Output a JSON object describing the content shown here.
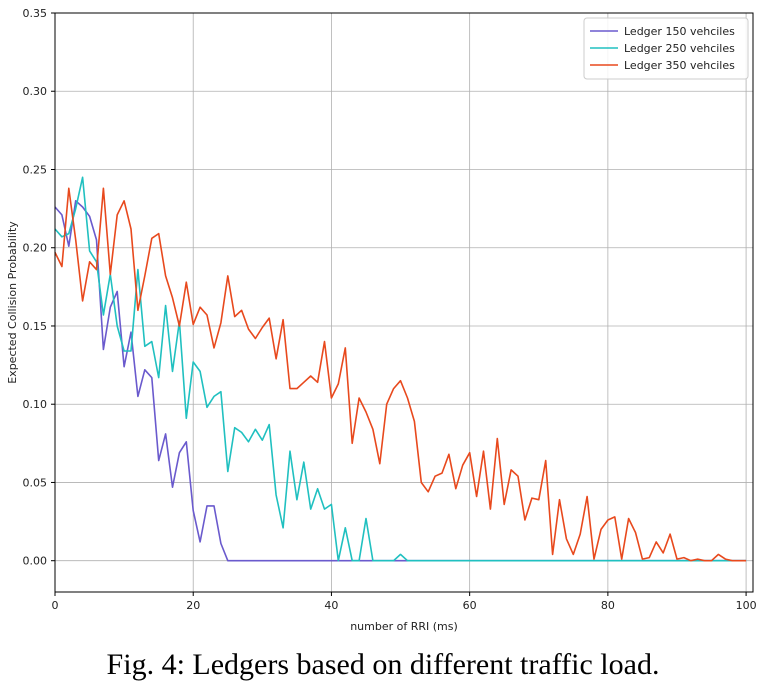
{
  "chart_data": {
    "type": "line",
    "title": "",
    "xlabel": "number of RRI (ms)",
    "ylabel": "Expected Collision Probability",
    "xlim": [
      0,
      101
    ],
    "ylim": [
      -0.02,
      0.35
    ],
    "xticks": [
      0,
      20,
      40,
      60,
      80,
      100
    ],
    "yticks": [
      0.0,
      0.05,
      0.1,
      0.15,
      0.2,
      0.25,
      0.3,
      0.35
    ],
    "grid": true,
    "legend_position": "top-right",
    "series": [
      {
        "name": "Ledger 150 vehciles",
        "color": "#6a5acd",
        "x": [
          0,
          1,
          2,
          3,
          4,
          5,
          6,
          7,
          8,
          9,
          10,
          11,
          12,
          13,
          14,
          15,
          16,
          17,
          18,
          19,
          20,
          21,
          22,
          23,
          24,
          25,
          30,
          40,
          50,
          60,
          70,
          80,
          90,
          100
        ],
        "y": [
          0.226,
          0.221,
          0.201,
          0.23,
          0.226,
          0.22,
          0.205,
          0.135,
          0.162,
          0.172,
          0.124,
          0.146,
          0.105,
          0.122,
          0.117,
          0.064,
          0.081,
          0.047,
          0.069,
          0.076,
          0.032,
          0.012,
          0.035,
          0.035,
          0.011,
          0.0,
          0.0,
          0.0,
          0.0,
          0.0,
          0.0,
          0.0,
          0.0,
          0.0
        ]
      },
      {
        "name": "Ledger 250 vehciles",
        "color": "#20c0c0",
        "x": [
          0,
          1,
          2,
          3,
          4,
          5,
          6,
          7,
          8,
          9,
          10,
          11,
          12,
          13,
          14,
          15,
          16,
          17,
          18,
          19,
          20,
          21,
          22,
          23,
          24,
          25,
          26,
          27,
          28,
          29,
          30,
          31,
          32,
          33,
          34,
          35,
          36,
          37,
          38,
          39,
          40,
          41,
          42,
          43,
          44,
          45,
          46,
          47,
          48,
          49,
          50,
          51,
          52,
          60,
          70,
          80,
          90,
          100
        ],
        "y": [
          0.212,
          0.207,
          0.209,
          0.225,
          0.245,
          0.198,
          0.191,
          0.157,
          0.183,
          0.15,
          0.134,
          0.134,
          0.186,
          0.137,
          0.14,
          0.117,
          0.163,
          0.121,
          0.153,
          0.091,
          0.127,
          0.121,
          0.098,
          0.105,
          0.108,
          0.057,
          0.085,
          0.082,
          0.076,
          0.084,
          0.077,
          0.087,
          0.042,
          0.021,
          0.07,
          0.039,
          0.063,
          0.033,
          0.046,
          0.033,
          0.036,
          0.0,
          0.021,
          0.0,
          0.0,
          0.027,
          0.0,
          0.0,
          0.0,
          0.0,
          0.004,
          0.0,
          0.0,
          0.0,
          0.0,
          0.0,
          0.0,
          0.0
        ]
      },
      {
        "name": "Ledger 350 vehciles",
        "color": "#e8491d",
        "x": [
          0,
          1,
          2,
          3,
          4,
          5,
          6,
          7,
          8,
          9,
          10,
          11,
          12,
          13,
          14,
          15,
          16,
          17,
          18,
          19,
          20,
          21,
          22,
          23,
          24,
          25,
          26,
          27,
          28,
          29,
          30,
          31,
          32,
          33,
          34,
          35,
          36,
          37,
          38,
          39,
          40,
          41,
          42,
          43,
          44,
          45,
          46,
          47,
          48,
          49,
          50,
          51,
          52,
          53,
          54,
          55,
          56,
          57,
          58,
          59,
          60,
          61,
          62,
          63,
          64,
          65,
          66,
          67,
          68,
          69,
          70,
          71,
          72,
          73,
          74,
          75,
          76,
          77,
          78,
          79,
          80,
          81,
          82,
          83,
          84,
          85,
          86,
          87,
          88,
          89,
          90,
          91,
          92,
          93,
          94,
          95,
          96,
          97,
          98,
          99,
          100
        ],
        "y": [
          0.197,
          0.188,
          0.238,
          0.205,
          0.166,
          0.191,
          0.186,
          0.238,
          0.183,
          0.221,
          0.23,
          0.212,
          0.16,
          0.182,
          0.206,
          0.209,
          0.182,
          0.168,
          0.15,
          0.178,
          0.151,
          0.162,
          0.157,
          0.136,
          0.152,
          0.182,
          0.156,
          0.16,
          0.148,
          0.142,
          0.149,
          0.155,
          0.129,
          0.154,
          0.11,
          0.11,
          0.114,
          0.118,
          0.114,
          0.14,
          0.104,
          0.113,
          0.136,
          0.075,
          0.104,
          0.095,
          0.084,
          0.062,
          0.1,
          0.11,
          0.115,
          0.104,
          0.089,
          0.05,
          0.044,
          0.054,
          0.056,
          0.068,
          0.046,
          0.061,
          0.069,
          0.041,
          0.07,
          0.033,
          0.078,
          0.036,
          0.058,
          0.054,
          0.026,
          0.04,
          0.039,
          0.064,
          0.004,
          0.039,
          0.014,
          0.004,
          0.017,
          0.041,
          0.001,
          0.02,
          0.026,
          0.028,
          0.001,
          0.027,
          0.018,
          0.001,
          0.002,
          0.012,
          0.005,
          0.017,
          0.001,
          0.002,
          0.0,
          0.001,
          0.0,
          0.0,
          0.004,
          0.001,
          0.0,
          0.0,
          0.0
        ]
      }
    ]
  },
  "caption": "Fig. 4: Ledgers based on different traffic load."
}
